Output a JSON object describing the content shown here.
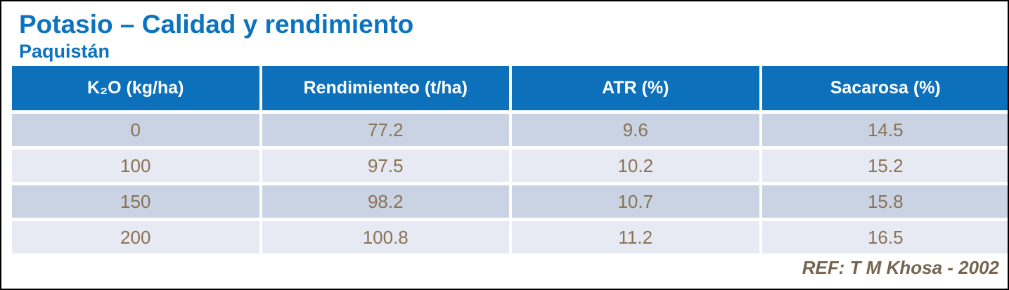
{
  "slide": {
    "title": "Potasio – Calidad y rendimiento",
    "subtitle": "Paquistán",
    "reference": "REF: T M Khosa - 2002"
  },
  "table": {
    "columns": [
      "K₂O (kg/ha)",
      "Rendimienteo (t/ha)",
      "ATR (%)",
      "Sacarosa (%)"
    ],
    "rows": [
      [
        "0",
        "77.2",
        "9.6",
        "14.5"
      ],
      [
        "100",
        "97.5",
        "10.2",
        "15.2"
      ],
      [
        "150",
        "98.2",
        "10.7",
        "15.8"
      ],
      [
        "200",
        "100.8",
        "11.2",
        "16.5"
      ]
    ]
  },
  "colors": {
    "title_blue": "#0C73BF",
    "header_blue": "#0C70BA",
    "row_dark": "#C9D3E3",
    "row_light": "#E7EAF2",
    "data_text": "#8A7357",
    "reference_text": "#76654F"
  },
  "chart_data": {
    "type": "table",
    "title": "Potasio – Calidad y rendimiento",
    "subtitle": "Paquistán",
    "columns": [
      "K2O (kg/ha)",
      "Rendimienteo (t/ha)",
      "ATR (%)",
      "Sacarosa (%)"
    ],
    "rows": [
      [
        0,
        77.2,
        9.6,
        14.5
      ],
      [
        100,
        97.5,
        10.2,
        15.2
      ],
      [
        150,
        98.2,
        10.7,
        15.8
      ],
      [
        200,
        100.8,
        11.2,
        16.5
      ]
    ],
    "annotations": [
      "REF: T M Khosa - 2002"
    ]
  }
}
